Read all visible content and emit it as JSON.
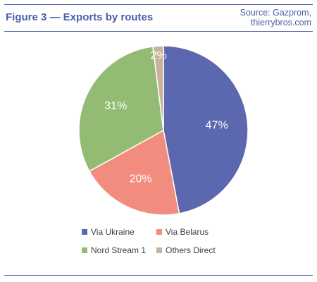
{
  "header": {
    "figure_title": "Figure 3 — Exports by routes",
    "source_line1": "Source: Gazprom,",
    "source_line2": "thierrybros.com"
  },
  "chart_data": {
    "type": "pie",
    "title": "Figure 3 — Exports by routes",
    "slices": [
      {
        "label": "Via Ukraine",
        "value": 47,
        "value_label": "47%",
        "color": "#5b68b0"
      },
      {
        "label": "Via Belarus",
        "value": 20,
        "value_label": "20%",
        "color": "#f28c7e"
      },
      {
        "label": "Nord Stream 1",
        "value": 31,
        "value_label": "31%",
        "color": "#94bb73"
      },
      {
        "label": "Others Direct",
        "value": 2,
        "value_label": "2%",
        "color": "#c7b29e"
      }
    ],
    "legend_placement": "bottom"
  }
}
